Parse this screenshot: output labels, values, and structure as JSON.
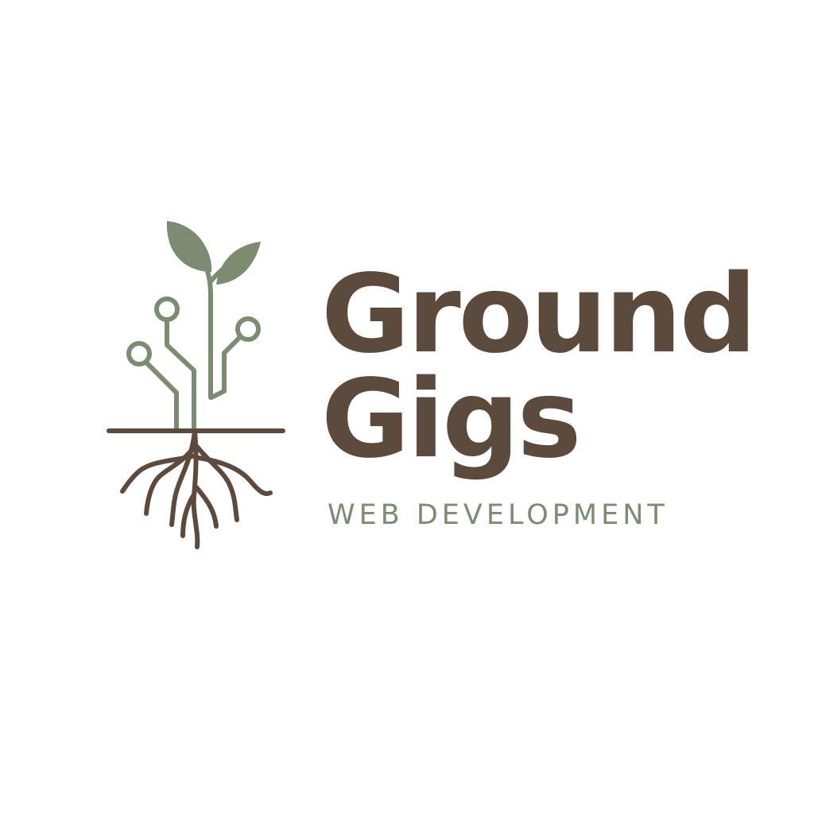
{
  "logo": {
    "name_line_1": "Ground",
    "name_line_2": "Gigs",
    "tagline": "WEB DEVELOPMENT",
    "icon": "sprout-circuit-roots-icon"
  },
  "colors": {
    "brown": "#5c4a3c",
    "leaf_green": "#7b8c71",
    "background": "#ffffff"
  }
}
